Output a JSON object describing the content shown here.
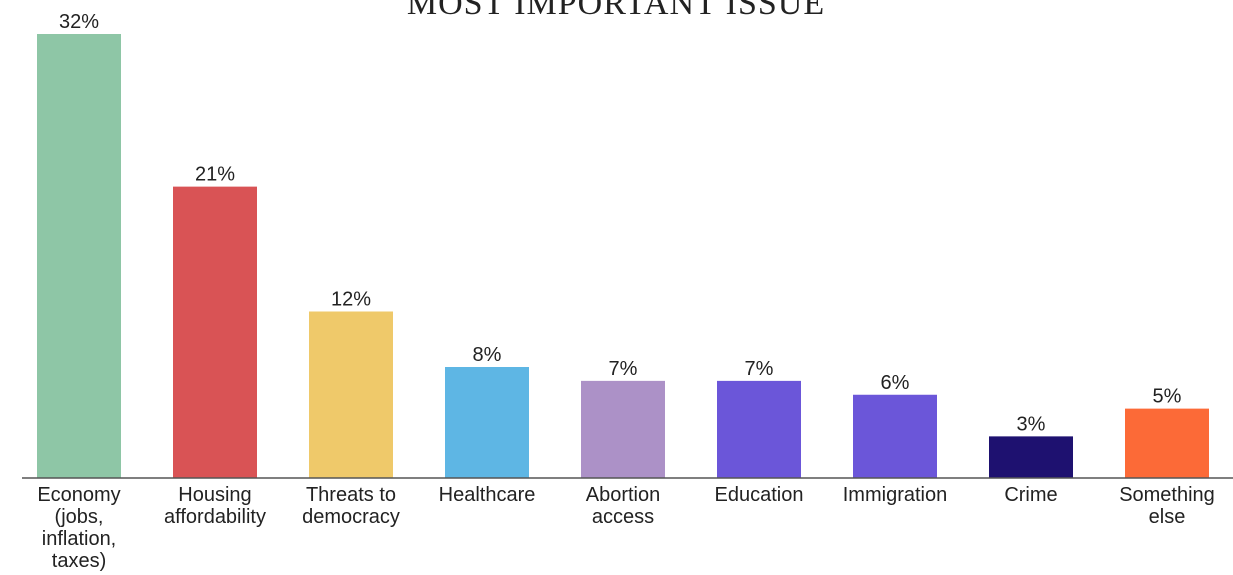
{
  "chart_data": {
    "type": "bar",
    "title": "MOST IMPORTANT ISSUE",
    "xlabel": "",
    "ylabel": "",
    "ylim": [
      0,
      32
    ],
    "grid": false,
    "legend": "none",
    "unit": "%",
    "categories": [
      "Economy (jobs, inflation, taxes)",
      "Housing affordability",
      "Threats to democracy",
      "Healthcare",
      "Abortion access",
      "Education",
      "Immigration",
      "Crime",
      "Something else"
    ],
    "category_lines": [
      [
        "Economy",
        "(jobs,",
        "inflation,",
        "taxes)"
      ],
      [
        "Housing",
        "affordability"
      ],
      [
        "Threats to",
        "democracy"
      ],
      [
        "Healthcare"
      ],
      [
        "Abortion",
        "access"
      ],
      [
        "Education"
      ],
      [
        "Immigration"
      ],
      [
        "Crime"
      ],
      [
        "Something",
        "else"
      ]
    ],
    "values": [
      32,
      21,
      12,
      8,
      7,
      7,
      6,
      3,
      5
    ],
    "data_labels": [
      "32%",
      "21%",
      "12%",
      "8%",
      "7%",
      "7%",
      "6%",
      "3%",
      "5%"
    ],
    "colors": [
      "#8ec6a6",
      "#d95355",
      "#efc96a",
      "#5eb6e4",
      "#ac91c7",
      "#6b56d9",
      "#6b56d9",
      "#1e1170",
      "#fc6a37"
    ]
  }
}
